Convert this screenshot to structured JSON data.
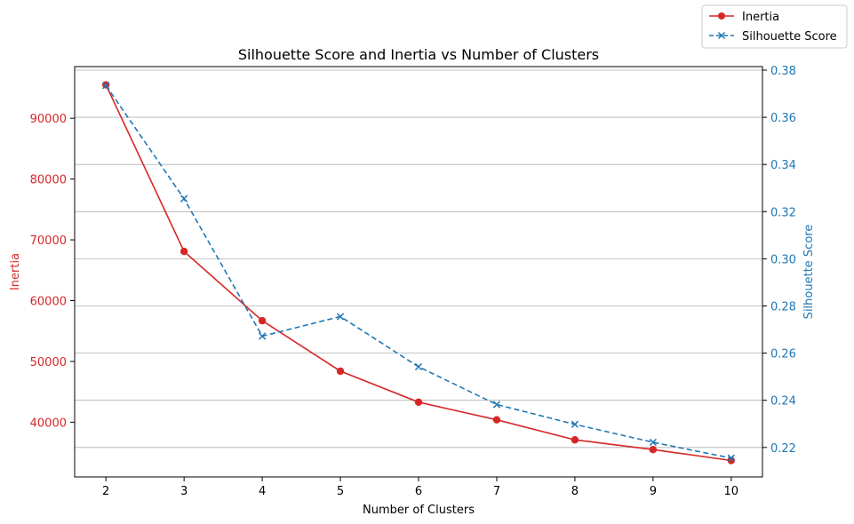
{
  "chart_data": {
    "type": "line",
    "title": "Silhouette Score and Inertia vs Number of Clusters",
    "xlabel": "Number of Clusters",
    "x": [
      2,
      3,
      4,
      5,
      6,
      7,
      8,
      9,
      10
    ],
    "xlim": [
      1.6,
      10.4
    ],
    "grid": "horizontal, right axis ticks",
    "legend_placement": "top-right (outside plot)",
    "left_axis": {
      "label": "Inertia",
      "color": "#d62728",
      "ylim": [
        31000,
        98500
      ],
      "ticks": [
        40000,
        50000,
        60000,
        70000,
        80000,
        90000
      ]
    },
    "right_axis": {
      "label": "Silhouette Score",
      "color": "#1f77b4",
      "ylim": [
        0.2075,
        0.3815
      ],
      "ticks": [
        0.22,
        0.24,
        0.26,
        0.28,
        0.3,
        0.32,
        0.34,
        0.36,
        0.38
      ]
    },
    "series": [
      {
        "name": "Inertia",
        "axis": "left",
        "color": "#d62728",
        "marker": "circle",
        "linestyle": "solid",
        "values": [
          95500,
          68100,
          56700,
          48400,
          43300,
          40400,
          37100,
          35500,
          33700
        ]
      },
      {
        "name": "Silhouette Score",
        "axis": "right",
        "color": "#1f77b4",
        "marker": "x",
        "linestyle": "dashed",
        "values": [
          0.3735,
          0.3255,
          0.2672,
          0.2755,
          0.2542,
          0.2382,
          0.2298,
          0.2222,
          0.2155
        ]
      }
    ]
  }
}
